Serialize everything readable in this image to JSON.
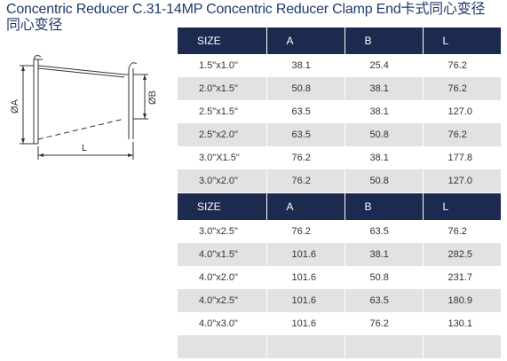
{
  "title": {
    "line1": "Concentric Reducer C.31-14MP Concentric Reducer Clamp End卡式同心变径",
    "line2": "同心变径"
  },
  "drawing": {
    "label_a": "ØA",
    "label_b": "ØB",
    "label_l": "L"
  },
  "table1": {
    "headers": [
      "SIZE",
      "A",
      "B",
      "L"
    ],
    "rows": [
      [
        "1.5\"x1.0\"",
        "38.1",
        "25.4",
        "76.2"
      ],
      [
        "2.0\"x1.5\"",
        "50.8",
        "38.1",
        "76.2"
      ],
      [
        "2.5\"x1.5\"",
        "63.5",
        "38.1",
        "127.0"
      ],
      [
        "2.5\"x2.0\"",
        "63.5",
        "50.8",
        "76.2"
      ],
      [
        "3.0\"X1.5\"",
        "76.2",
        "38.1",
        "177.8"
      ],
      [
        "3.0\"x2.0\"",
        "76.2",
        "50.8",
        "127.0"
      ]
    ]
  },
  "table2": {
    "headers": [
      "SIZE",
      "A",
      "B",
      "L"
    ],
    "rows": [
      [
        "3.0\"x2.5\"",
        "76.2",
        "63.5",
        "76.2"
      ],
      [
        "4.0\"x1.5\"",
        "101.6",
        "38.1",
        "282.5"
      ],
      [
        "4.0\"x2.0\"",
        "101.6",
        "50.8",
        "231.7"
      ],
      [
        "4.0\"x2.5\"",
        "101.6",
        "63.5",
        "180.9"
      ],
      [
        "4.0\"x3.0\"",
        "101.6",
        "76.2",
        "130.1"
      ],
      [
        "",
        "",
        "",
        ""
      ]
    ]
  }
}
